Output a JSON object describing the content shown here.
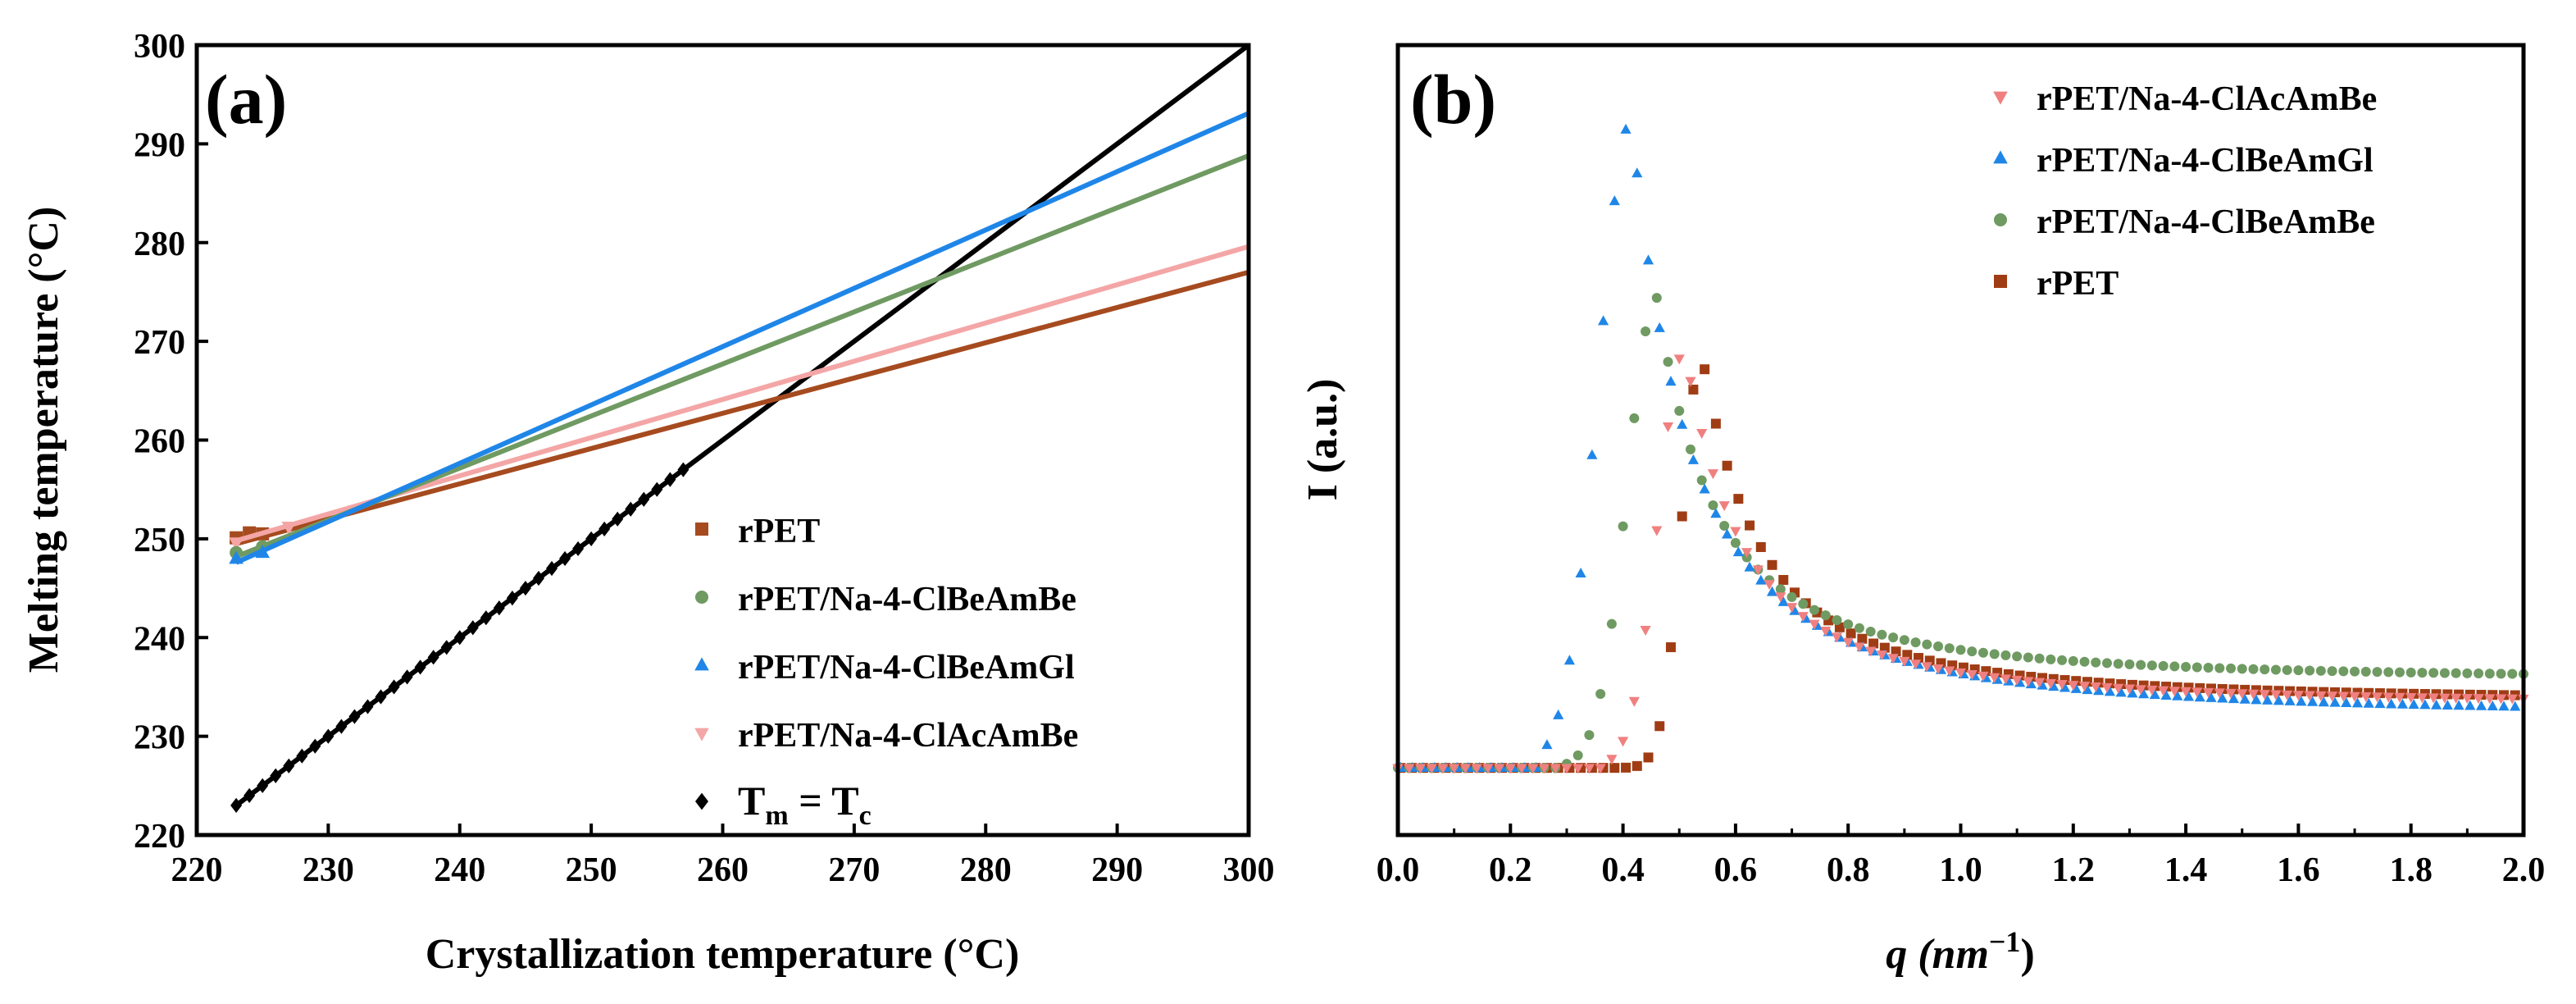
{
  "chart_data": [
    {
      "type": "line",
      "panel_label": "(a)",
      "xlabel": "Crystallization temperature (°C)",
      "ylabel": "Melting temperature (°C)",
      "xlim": [
        220,
        300
      ],
      "ylim": [
        220,
        300
      ],
      "x_ticks": [
        220,
        230,
        240,
        250,
        260,
        270,
        280,
        290,
        300
      ],
      "y_ticks": [
        220,
        230,
        240,
        250,
        260,
        270,
        280,
        290,
        300
      ],
      "legend_position": "bottom-right",
      "series": [
        {
          "name": "rPET",
          "marker": "square",
          "color": "#a64b1f",
          "points": [
            [
              223,
              250.1
            ],
            [
              224,
              250.6
            ],
            [
              225,
              250.5
            ]
          ],
          "fit": [
            [
              223,
              249.5
            ],
            [
              300,
              277.0
            ]
          ]
        },
        {
          "name": "rPET/Na-4-ClBeAmBe",
          "marker": "circle",
          "color": "#6f9a62",
          "points": [
            [
              223,
              248.6
            ],
            [
              225,
              249.2
            ]
          ],
          "fit": [
            [
              223,
              248.2
            ],
            [
              300,
              288.8
            ]
          ]
        },
        {
          "name": "rPET/Na-4-ClBeAmGl",
          "marker": "triangle",
          "color": "#1f86e8",
          "points": [
            [
              223,
              248.0
            ],
            [
              225,
              248.6
            ]
          ],
          "fit": [
            [
              223,
              247.6
            ],
            [
              300,
              293.1
            ]
          ]
        },
        {
          "name": "rPET/Na-4-ClAcAmBe",
          "marker": "triangle-down",
          "color": "#f4a6a6",
          "points": [
            [
              223,
              249.6
            ],
            [
              227,
              251.2
            ]
          ],
          "fit": [
            [
              223,
              249.8
            ],
            [
              300,
              279.6
            ]
          ]
        },
        {
          "name": "T",
          "marker": "diamond",
          "color": "#000000",
          "sub1": "m",
          "eq": " = T",
          "sub2": "c",
          "points_range": [
            223,
            257,
            1
          ],
          "fit": [
            [
              223,
              223
            ],
            [
              300,
              300
            ]
          ]
        }
      ]
    },
    {
      "type": "scatter",
      "panel_label": "(b)",
      "xlabel": "q (nm",
      "xlabel_sup": "−1",
      "xlabel_suffix": ")",
      "ylabel": "I (a.u.)",
      "xlim": [
        0.0,
        2.0
      ],
      "ylim": [
        0,
        100
      ],
      "x_ticks": [
        "0.0",
        "0.2",
        "0.4",
        "0.6",
        "0.8",
        "1.0",
        "1.2",
        "1.4",
        "1.6",
        "1.8",
        "2.0"
      ],
      "legend_position": "top-right",
      "baseline": 8.5,
      "series": [
        {
          "name": "rPET/Na-4-ClAcAmBe",
          "marker": "triangle-down",
          "color": "#f08080",
          "onset": 0.38,
          "peak_q": 0.51,
          "peak_I": 61.5,
          "width_l": 0.047,
          "tail_I": 16.6
        },
        {
          "name": "rPET/Na-4-ClBeAmGl",
          "marker": "triangle",
          "color": "#1f86e8",
          "onset": 0.25,
          "peak_q": 0.415,
          "peak_I": 90.5,
          "width_l": 0.058,
          "tail_I": 15.2
        },
        {
          "name": "rPET/Na-4-ClBeAmBe",
          "marker": "circle",
          "color": "#6f9a62",
          "onset": 0.3,
          "peak_q": 0.46,
          "peak_I": 68.0,
          "width_l": 0.052,
          "tail_I": 19.7
        },
        {
          "name": "rPET",
          "marker": "square",
          "color": "#a03c14",
          "onset": 0.4,
          "peak_q": 0.54,
          "peak_I": 61.0,
          "width_l": 0.035,
          "tail_I": 17.0
        }
      ]
    }
  ]
}
